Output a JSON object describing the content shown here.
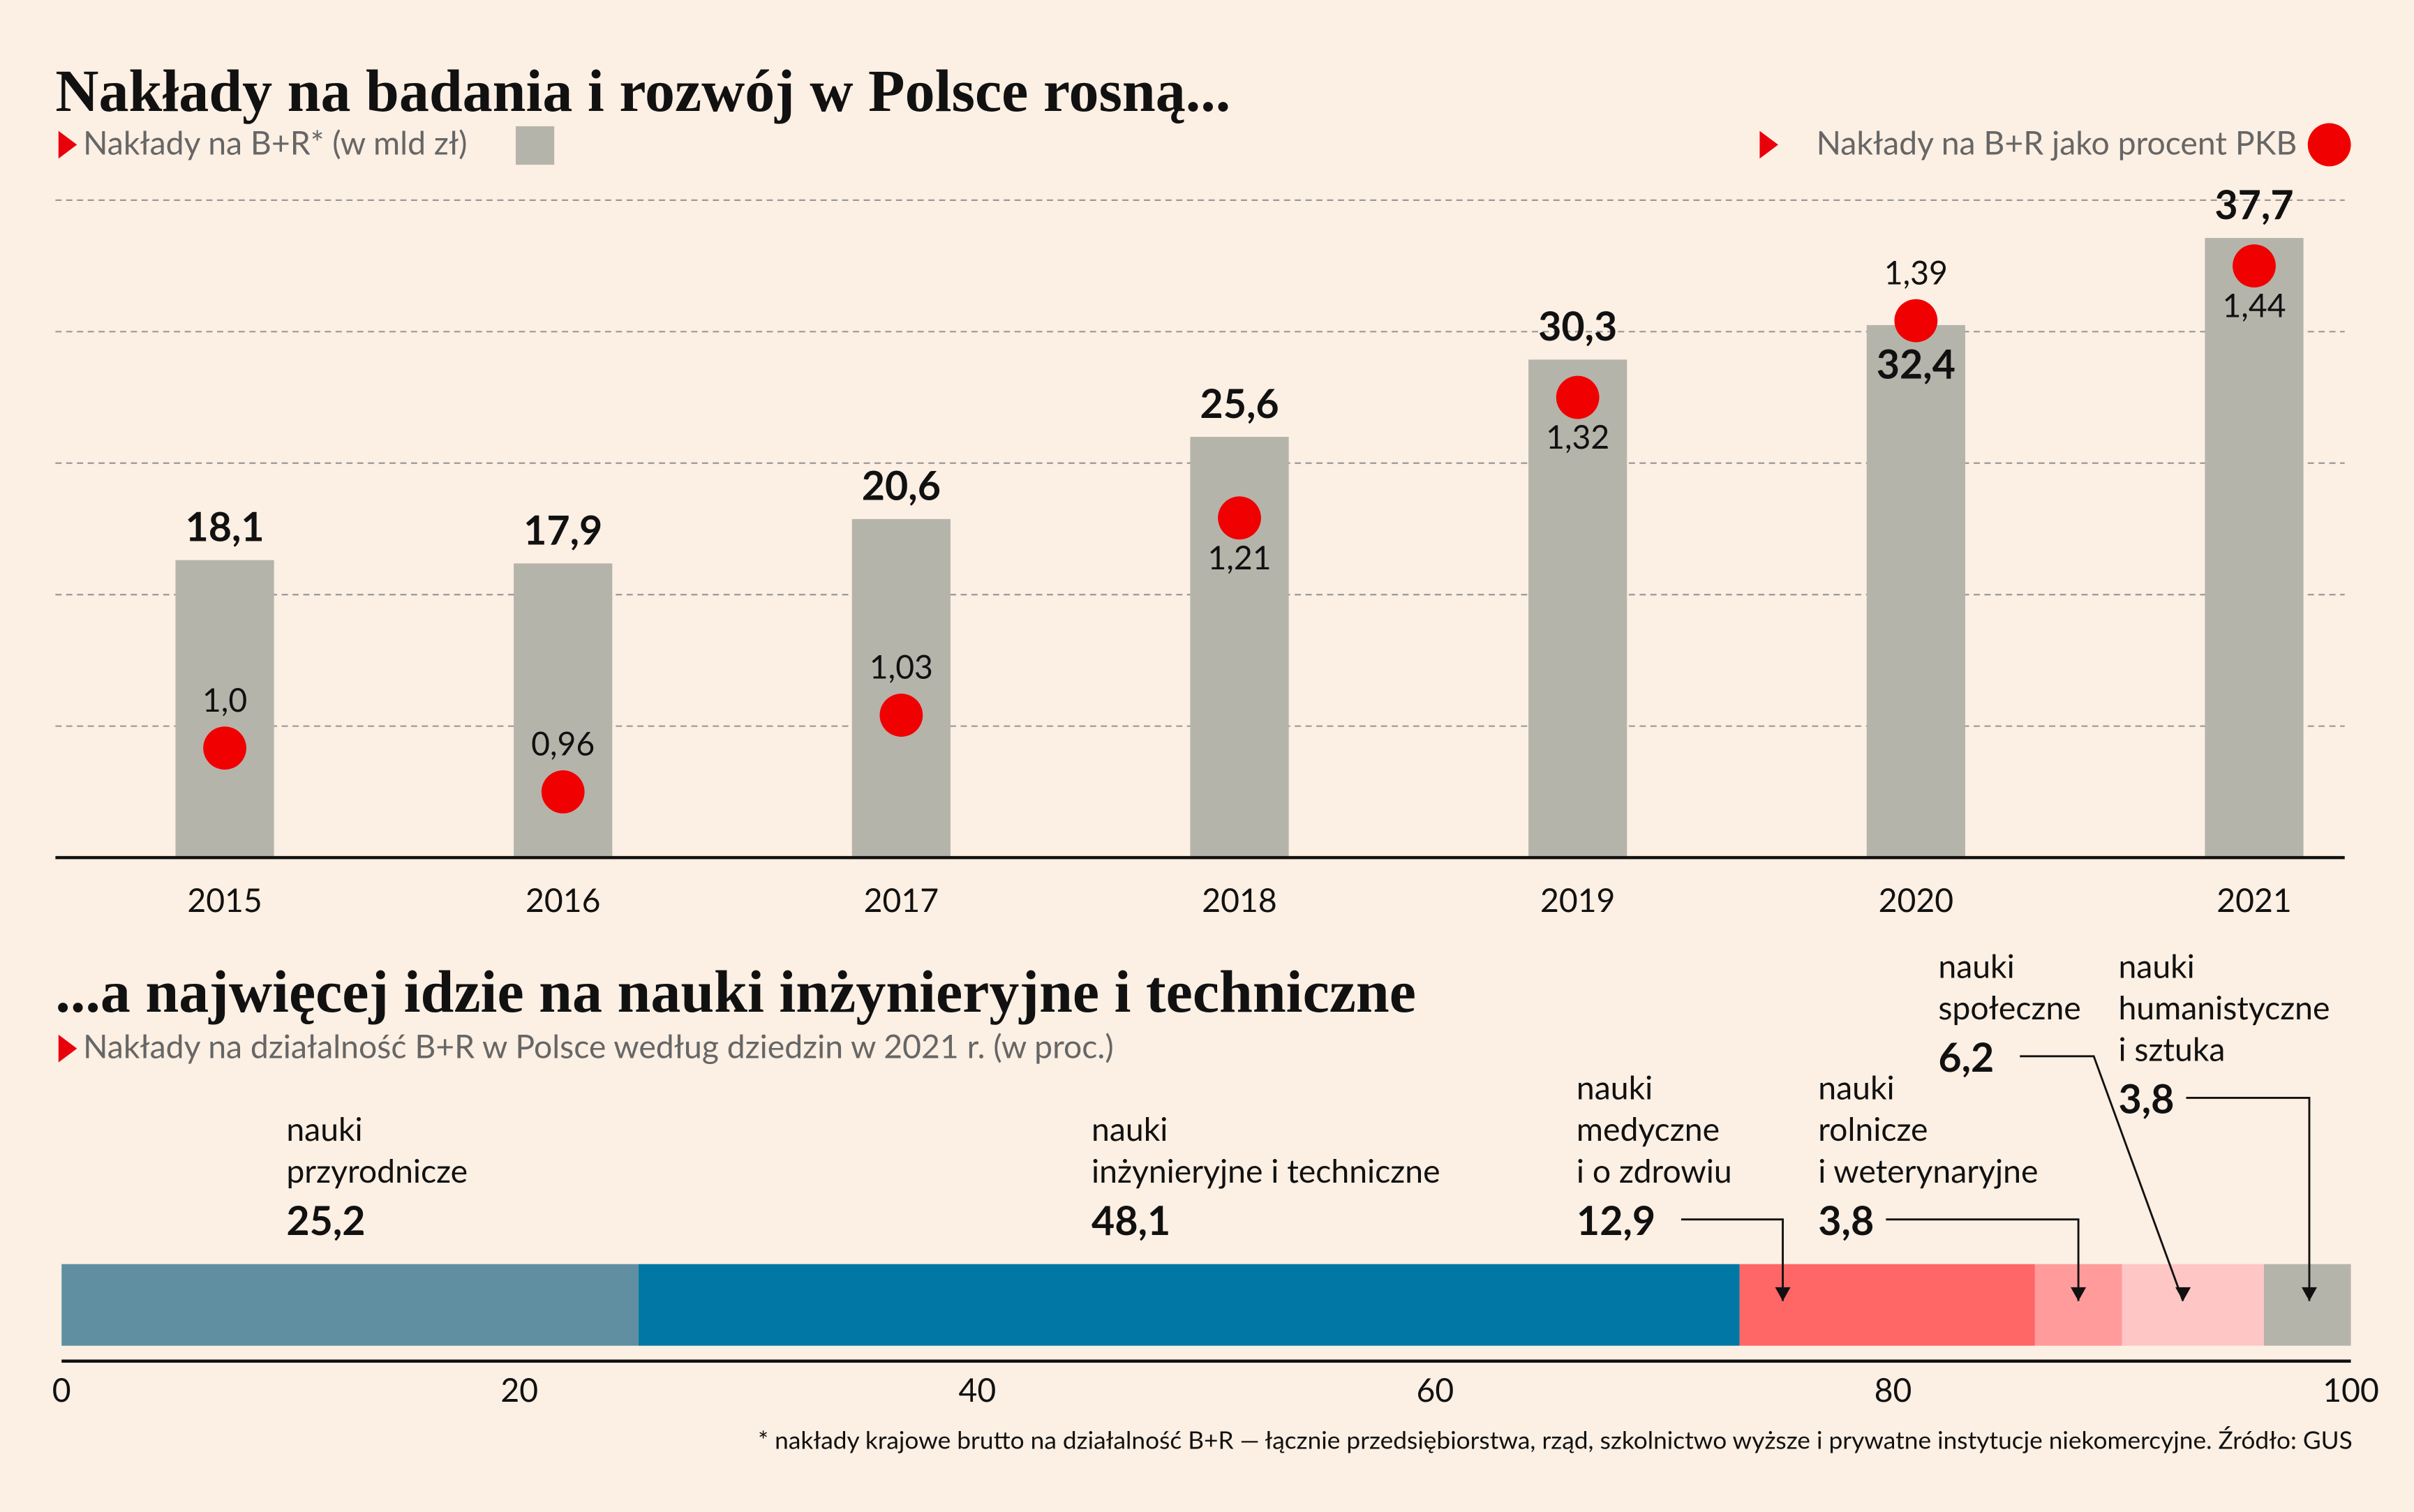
{
  "chart_data": [
    {
      "type": "bar",
      "title": "Nakłady na badania i rozwój w Polsce rosną...",
      "categories": [
        "2015",
        "2016",
        "2017",
        "2018",
        "2019",
        "2020",
        "2021"
      ],
      "series": [
        {
          "name": "Nakłady na B+R* (w mld zł)",
          "color": "#b5b4ab",
          "values": [
            18.1,
            17.9,
            20.6,
            25.6,
            30.3,
            32.4,
            37.7
          ],
          "value_labels": [
            "18,1",
            "17,9",
            "20,6",
            "25,6",
            "30,3",
            "32,4",
            "37,7"
          ]
        },
        {
          "name": "Nakłady na B+R jako procent PKB",
          "color": "#f00000",
          "type": "scatter",
          "axis": "y2",
          "values": [
            1.0,
            0.96,
            1.03,
            1.21,
            1.32,
            1.39,
            1.44
          ],
          "value_labels": [
            "1,0",
            "0,96",
            "1,03",
            "1,21",
            "1,32",
            "1,39",
            "1,44"
          ]
        }
      ],
      "ylim": [
        0,
        40
      ],
      "yticks": [
        8,
        16,
        24,
        32,
        40
      ],
      "y2lim": [
        0.9,
        1.5
      ],
      "grid": true
    },
    {
      "type": "bar",
      "orientation": "horizontal",
      "stacked": true,
      "title": "...a najwięcej idzie na nauki inżynieryjne i techniczne",
      "subtitle": "Nakłady na działalność B+R w Polsce według dziedzin w 2021 r. (w proc.)",
      "series": [
        {
          "name": "nauki\nprzyrodnicze",
          "color": "#5f8fa1",
          "values": [
            25.2
          ],
          "value_labels": [
            "25,2"
          ]
        },
        {
          "name": "nauki\ninżynieryjne i techniczne",
          "color": "#0077a4",
          "values": [
            48.1
          ],
          "value_labels": [
            "48,1"
          ]
        },
        {
          "name": "nauki\nmedyczne\ni o zdrowiu",
          "color": "#ff6666",
          "values": [
            12.9
          ],
          "value_labels": [
            "12,9"
          ]
        },
        {
          "name": "nauki\nrolnicze\ni weterynaryjne",
          "color": "#ff9b9b",
          "values": [
            3.8
          ],
          "value_labels": [
            "3,8"
          ]
        },
        {
          "name": "nauki\nspołeczne",
          "color": "#ffc6c6",
          "values": [
            6.2
          ],
          "value_labels": [
            "6,2"
          ]
        },
        {
          "name": "nauki\nhumanistyczne\ni sztuka",
          "color": "#b5b4ab",
          "values": [
            3.8
          ],
          "value_labels": [
            "3,8"
          ]
        }
      ],
      "xlim": [
        0,
        100
      ],
      "xticks": [
        0,
        20,
        40,
        60,
        80,
        100
      ],
      "note": "* nakłady krajowe brutto na działalność B+R — łącznie przedsiębiorstwa, rząd, szkolnictwo wyższe i prywatne instytucje niekomercyjne. Źródło: GUS"
    }
  ]
}
